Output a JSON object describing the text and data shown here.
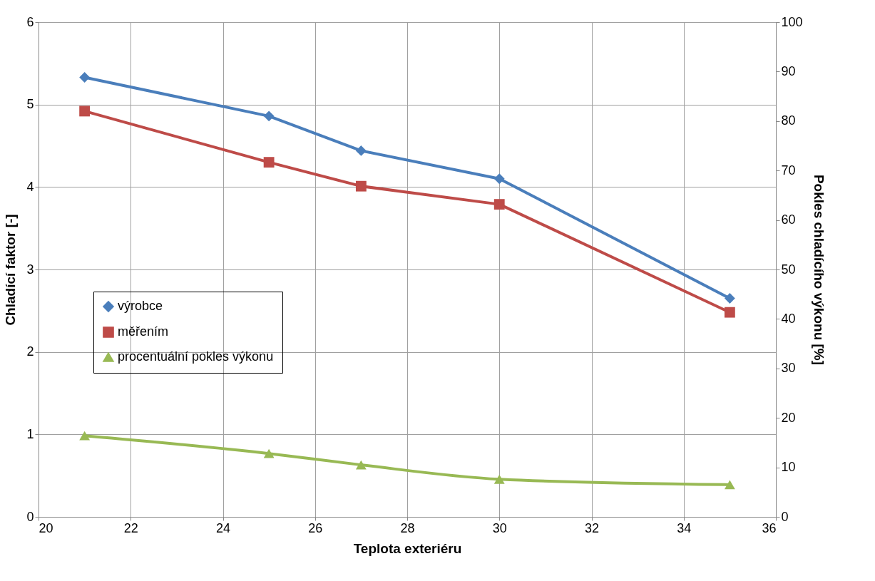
{
  "chart_data": {
    "type": "line",
    "xlabel": "Teplota exteriéru",
    "ylabel": "Chladící faktor [-]",
    "y2label": "Pokles chladícího výkonu [%]",
    "x": [
      21,
      25,
      27,
      30,
      35
    ],
    "series": [
      {
        "name": "výrobce",
        "color": "#4a7ebb",
        "marker": "diamond",
        "values": [
          5.33,
          4.86,
          4.44,
          4.1,
          2.65
        ]
      },
      {
        "name": "měřením",
        "color": "#be4b48",
        "marker": "square",
        "values": [
          4.92,
          4.3,
          4.01,
          3.79,
          2.48
        ]
      },
      {
        "name": "procentuální pokles výkonu",
        "color": "#98b954",
        "marker": "triangle",
        "axis": "y2",
        "values": [
          16.4,
          12.8,
          10.5,
          7.6,
          6.5
        ]
      }
    ],
    "xlim": [
      20,
      36
    ],
    "xticks": [
      20,
      22,
      24,
      26,
      28,
      30,
      32,
      34,
      36
    ],
    "ylim": [
      0,
      6
    ],
    "yticks": [
      0,
      1,
      2,
      3,
      4,
      5,
      6
    ],
    "y2lim": [
      0,
      100
    ],
    "y2ticks": [
      0,
      10,
      20,
      30,
      40,
      50,
      60,
      70,
      80,
      90,
      100
    ],
    "grid": true,
    "legend": "left"
  }
}
